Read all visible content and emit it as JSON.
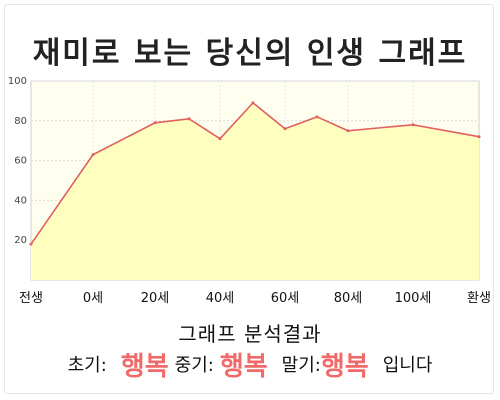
{
  "title": "재미로 보는 당신의 인생 그래프",
  "chart_data": {
    "type": "area",
    "x_labels": [
      "전생",
      "0세",
      "20세",
      "40세",
      "60세",
      "80세",
      "100세",
      "환생"
    ],
    "y_ticks": [
      20,
      40,
      60,
      80,
      100
    ],
    "ylim": [
      0,
      100
    ],
    "grid": true,
    "legend": "none",
    "line_color": "#e06060",
    "fill_color": "#ffffc0",
    "plot_background": "#fffff0",
    "points": [
      {
        "x": "전생",
        "y": 18
      },
      {
        "x": "0세",
        "y": 63
      },
      {
        "x": "20세",
        "y": 79
      },
      {
        "x": "30세",
        "y": 81
      },
      {
        "x": "40세",
        "y": 71
      },
      {
        "x": "50세",
        "y": 89
      },
      {
        "x": "60세",
        "y": 76
      },
      {
        "x": "70세",
        "y": 82
      },
      {
        "x": "80세",
        "y": 75
      },
      {
        "x": "100세",
        "y": 78
      },
      {
        "x": "환생",
        "y": 72
      }
    ]
  },
  "analysis": {
    "title": "그래프 분석결과",
    "early_label": "초기:",
    "early_result": "행복",
    "middle_label": "중기:",
    "middle_result": "행복",
    "late_label": "말기:",
    "late_result": "행복",
    "suffix": "입니다"
  }
}
